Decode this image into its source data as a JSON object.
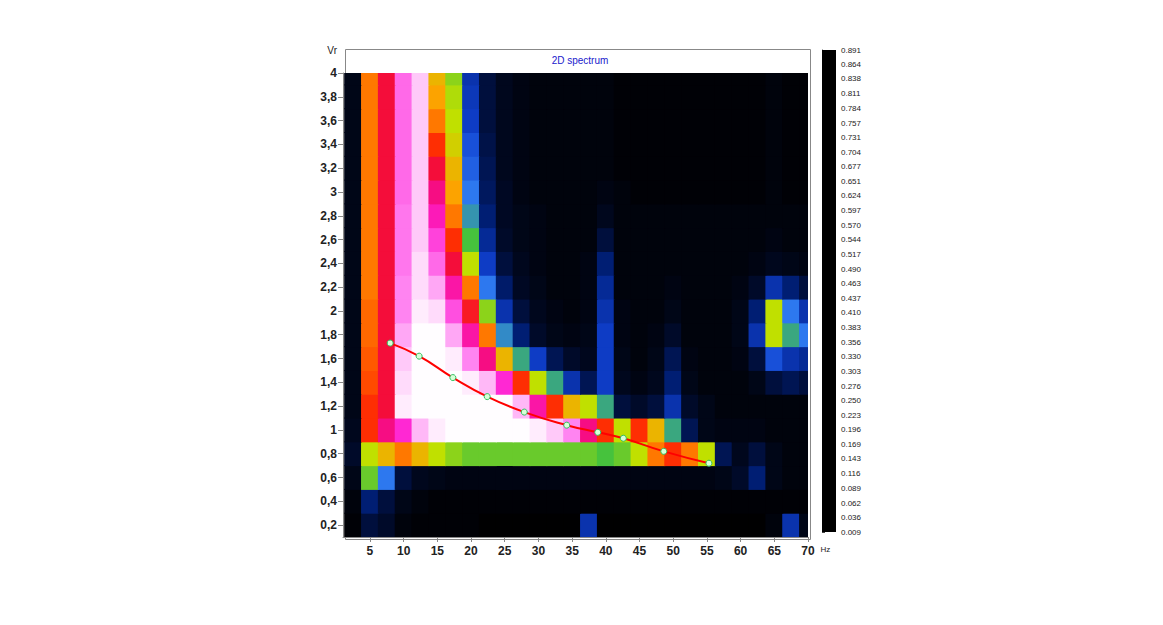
{
  "chart_data": {
    "type": "heatmap",
    "title": "2D spectrum",
    "x_label": "Hz",
    "y_label": "Vr",
    "xlim": [
      1,
      70
    ],
    "xticks": [
      5,
      10,
      15,
      20,
      25,
      30,
      35,
      40,
      45,
      50,
      55,
      60,
      65,
      70
    ],
    "ylim": [
      0.1,
      4
    ],
    "yticks": [
      {
        "value": 0.2,
        "label": "0,2"
      },
      {
        "value": 0.4,
        "label": "0,4"
      },
      {
        "value": 0.6,
        "label": "0,6"
      },
      {
        "value": 0.8,
        "label": "0,8"
      },
      1,
      {
        "value": 1.2,
        "label": "1,2"
      },
      {
        "value": 1.4,
        "label": "1,4"
      },
      {
        "value": 1.6,
        "label": "1,6"
      },
      {
        "value": 1.8,
        "label": "1,8"
      },
      2,
      {
        "value": 2.2,
        "label": "2,2"
      },
      {
        "value": 2.4,
        "label": "2,4"
      },
      {
        "value": 2.6,
        "label": "2,6"
      },
      {
        "value": 2.8,
        "label": "2,8"
      },
      3,
      {
        "value": 3.2,
        "label": "3,2"
      },
      {
        "value": 3.4,
        "label": "3,4"
      },
      {
        "value": 3.6,
        "label": "3,6"
      },
      {
        "value": 3.8,
        "label": "3,8"
      },
      4
    ],
    "grid": false,
    "spectrum": {
      "x": [
        2.5,
        5,
        7.5,
        10,
        12.5,
        15,
        17.5,
        20,
        22.5,
        25,
        27.5,
        30,
        32.5,
        35,
        37.5,
        40,
        42.5,
        45,
        47.5,
        50,
        52.5,
        55,
        57.5,
        60,
        62.5,
        65,
        67.5,
        70
      ],
      "y": [
        0.2,
        0.4,
        0.6,
        0.8,
        1.0,
        1.2,
        1.4,
        1.6,
        1.8,
        2.0,
        2.2,
        2.4,
        2.6,
        2.8,
        3.0,
        3.2,
        3.4,
        3.6,
        3.8,
        4.0
      ],
      "values": [
        [
          0.02,
          0.1,
          0.08,
          0.03,
          0.02,
          0.02,
          0.02,
          0.02,
          0.01,
          0.01,
          0.01,
          0.01,
          0.01,
          0.01,
          0.2,
          0.01,
          0.01,
          0.01,
          0.01,
          0.01,
          0.01,
          0.01,
          0.01,
          0.01,
          0.01,
          0.03,
          0.2,
          0.05
        ],
        [
          0.03,
          0.15,
          0.1,
          0.05,
          0.03,
          0.02,
          0.02,
          0.02,
          0.02,
          0.02,
          0.02,
          0.02,
          0.02,
          0.02,
          0.02,
          0.02,
          0.02,
          0.02,
          0.02,
          0.02,
          0.02,
          0.02,
          0.02,
          0.02,
          0.02,
          0.02,
          0.02,
          0.02
        ],
        [
          0.05,
          0.4,
          0.3,
          0.1,
          0.06,
          0.05,
          0.04,
          0.04,
          0.04,
          0.04,
          0.04,
          0.04,
          0.04,
          0.04,
          0.04,
          0.04,
          0.04,
          0.04,
          0.04,
          0.04,
          0.04,
          0.04,
          0.05,
          0.08,
          0.15,
          0.05,
          0.03,
          0.03
        ],
        [
          0.08,
          0.45,
          0.5,
          0.55,
          0.5,
          0.45,
          0.42,
          0.4,
          0.4,
          0.4,
          0.4,
          0.4,
          0.4,
          0.4,
          0.4,
          0.38,
          0.4,
          0.45,
          0.55,
          0.6,
          0.55,
          0.45,
          0.12,
          0.06,
          0.1,
          0.05,
          0.03,
          0.03
        ],
        [
          0.06,
          0.6,
          0.7,
          0.75,
          0.85,
          0.88,
          0.89,
          0.89,
          0.89,
          0.89,
          0.89,
          0.88,
          0.86,
          0.82,
          0.7,
          0.6,
          0.45,
          0.6,
          0.5,
          0.35,
          0.12,
          0.05,
          0.04,
          0.04,
          0.04,
          0.03,
          0.03,
          0.03
        ],
        [
          0.05,
          0.6,
          0.65,
          0.88,
          0.89,
          0.89,
          0.89,
          0.89,
          0.89,
          0.89,
          0.85,
          0.72,
          0.6,
          0.5,
          0.45,
          0.35,
          0.1,
          0.08,
          0.1,
          0.2,
          0.08,
          0.05,
          0.03,
          0.03,
          0.03,
          0.03,
          0.03,
          0.03
        ],
        [
          0.05,
          0.58,
          0.65,
          0.87,
          0.89,
          0.89,
          0.89,
          0.88,
          0.85,
          0.75,
          0.6,
          0.45,
          0.35,
          0.2,
          0.12,
          0.22,
          0.06,
          0.04,
          0.06,
          0.15,
          0.05,
          0.03,
          0.03,
          0.03,
          0.05,
          0.1,
          0.12,
          0.1
        ],
        [
          0.05,
          0.57,
          0.65,
          0.86,
          0.89,
          0.89,
          0.88,
          0.82,
          0.7,
          0.5,
          0.35,
          0.22,
          0.12,
          0.08,
          0.06,
          0.22,
          0.05,
          0.03,
          0.05,
          0.12,
          0.04,
          0.03,
          0.03,
          0.04,
          0.1,
          0.25,
          0.2,
          0.18
        ],
        [
          0.05,
          0.56,
          0.65,
          0.84,
          0.89,
          0.89,
          0.84,
          0.72,
          0.55,
          0.32,
          0.15,
          0.08,
          0.05,
          0.04,
          0.05,
          0.22,
          0.04,
          0.03,
          0.04,
          0.08,
          0.03,
          0.03,
          0.03,
          0.05,
          0.2,
          0.45,
          0.35,
          0.3
        ],
        [
          0.05,
          0.56,
          0.65,
          0.82,
          0.88,
          0.87,
          0.78,
          0.63,
          0.42,
          0.2,
          0.1,
          0.06,
          0.04,
          0.03,
          0.04,
          0.2,
          0.04,
          0.03,
          0.03,
          0.05,
          0.03,
          0.03,
          0.03,
          0.05,
          0.15,
          0.45,
          0.3,
          0.2
        ],
        [
          0.05,
          0.55,
          0.65,
          0.82,
          0.87,
          0.84,
          0.72,
          0.55,
          0.3,
          0.14,
          0.07,
          0.05,
          0.03,
          0.03,
          0.04,
          0.18,
          0.03,
          0.03,
          0.03,
          0.04,
          0.03,
          0.03,
          0.03,
          0.04,
          0.08,
          0.2,
          0.15,
          0.1
        ],
        [
          0.05,
          0.55,
          0.65,
          0.81,
          0.87,
          0.8,
          0.65,
          0.45,
          0.22,
          0.1,
          0.06,
          0.04,
          0.03,
          0.03,
          0.04,
          0.15,
          0.03,
          0.03,
          0.03,
          0.03,
          0.03,
          0.03,
          0.03,
          0.03,
          0.04,
          0.06,
          0.05,
          0.04
        ],
        [
          0.05,
          0.55,
          0.65,
          0.81,
          0.86,
          0.77,
          0.6,
          0.38,
          0.18,
          0.08,
          0.05,
          0.04,
          0.03,
          0.03,
          0.03,
          0.1,
          0.03,
          0.03,
          0.03,
          0.03,
          0.03,
          0.03,
          0.03,
          0.03,
          0.03,
          0.04,
          0.03,
          0.03
        ],
        [
          0.05,
          0.55,
          0.65,
          0.81,
          0.86,
          0.73,
          0.55,
          0.33,
          0.15,
          0.07,
          0.05,
          0.04,
          0.03,
          0.03,
          0.03,
          0.06,
          0.03,
          0.03,
          0.03,
          0.03,
          0.03,
          0.03,
          0.03,
          0.03,
          0.03,
          0.03,
          0.03,
          0.03
        ],
        [
          0.05,
          0.55,
          0.65,
          0.8,
          0.86,
          0.7,
          0.52,
          0.3,
          0.13,
          0.07,
          0.04,
          0.03,
          0.03,
          0.03,
          0.03,
          0.04,
          0.03,
          0.02,
          0.02,
          0.02,
          0.02,
          0.02,
          0.02,
          0.02,
          0.02,
          0.03,
          0.02,
          0.02
        ],
        [
          0.05,
          0.55,
          0.65,
          0.8,
          0.86,
          0.65,
          0.5,
          0.27,
          0.12,
          0.06,
          0.04,
          0.03,
          0.03,
          0.03,
          0.03,
          0.03,
          0.02,
          0.02,
          0.02,
          0.02,
          0.02,
          0.02,
          0.02,
          0.02,
          0.02,
          0.03,
          0.02,
          0.02
        ],
        [
          0.05,
          0.55,
          0.65,
          0.8,
          0.86,
          0.6,
          0.47,
          0.25,
          0.11,
          0.06,
          0.04,
          0.03,
          0.03,
          0.03,
          0.03,
          0.03,
          0.02,
          0.02,
          0.02,
          0.02,
          0.02,
          0.02,
          0.02,
          0.02,
          0.02,
          0.03,
          0.02,
          0.02
        ],
        [
          0.05,
          0.55,
          0.65,
          0.8,
          0.86,
          0.55,
          0.45,
          0.22,
          0.1,
          0.06,
          0.04,
          0.03,
          0.03,
          0.03,
          0.03,
          0.03,
          0.02,
          0.02,
          0.02,
          0.02,
          0.02,
          0.02,
          0.02,
          0.02,
          0.02,
          0.03,
          0.02,
          0.02
        ],
        [
          0.05,
          0.55,
          0.65,
          0.8,
          0.86,
          0.52,
          0.44,
          0.21,
          0.1,
          0.06,
          0.04,
          0.03,
          0.03,
          0.03,
          0.03,
          0.03,
          0.02,
          0.02,
          0.02,
          0.02,
          0.02,
          0.02,
          0.02,
          0.02,
          0.02,
          0.03,
          0.02,
          0.02
        ],
        [
          0.05,
          0.55,
          0.65,
          0.8,
          0.86,
          0.5,
          0.42,
          0.2,
          0.1,
          0.06,
          0.04,
          0.03,
          0.03,
          0.03,
          0.03,
          0.03,
          0.02,
          0.02,
          0.02,
          0.02,
          0.02,
          0.02,
          0.02,
          0.02,
          0.02,
          0.03,
          0.02,
          0.02
        ]
      ]
    },
    "colorbar": {
      "range": [
        0.009,
        0.891
      ],
      "ticks": [
        0.891,
        0.864,
        0.838,
        0.811,
        0.784,
        0.757,
        0.731,
        0.704,
        0.677,
        0.651,
        0.624,
        0.597,
        {
          "value": 0.57,
          "label": "0.570"
        },
        0.544,
        0.517,
        {
          "value": 0.49,
          "label": "0.490"
        },
        0.463,
        0.437,
        {
          "value": 0.41,
          "label": "0.410"
        },
        0.383,
        0.356,
        {
          "value": 0.33,
          "label": "0.330"
        },
        0.303,
        0.276,
        {
          "value": 0.25,
          "label": "0.250"
        },
        0.223,
        0.196,
        0.169,
        0.143,
        0.116,
        0.089,
        0.062,
        0.036,
        0.009
      ]
    },
    "series": [
      {
        "type": "line",
        "color": "#ff0000",
        "marker": "circle",
        "line_style": "solid",
        "x": [
          8.0,
          12.3,
          17.3,
          22.4,
          27.9,
          34.2,
          38.8,
          42.6,
          48.6,
          55.3
        ],
        "values": [
          1.73,
          1.62,
          1.44,
          1.28,
          1.15,
          1.04,
          0.98,
          0.93,
          0.82,
          0.72
        ]
      }
    ]
  }
}
